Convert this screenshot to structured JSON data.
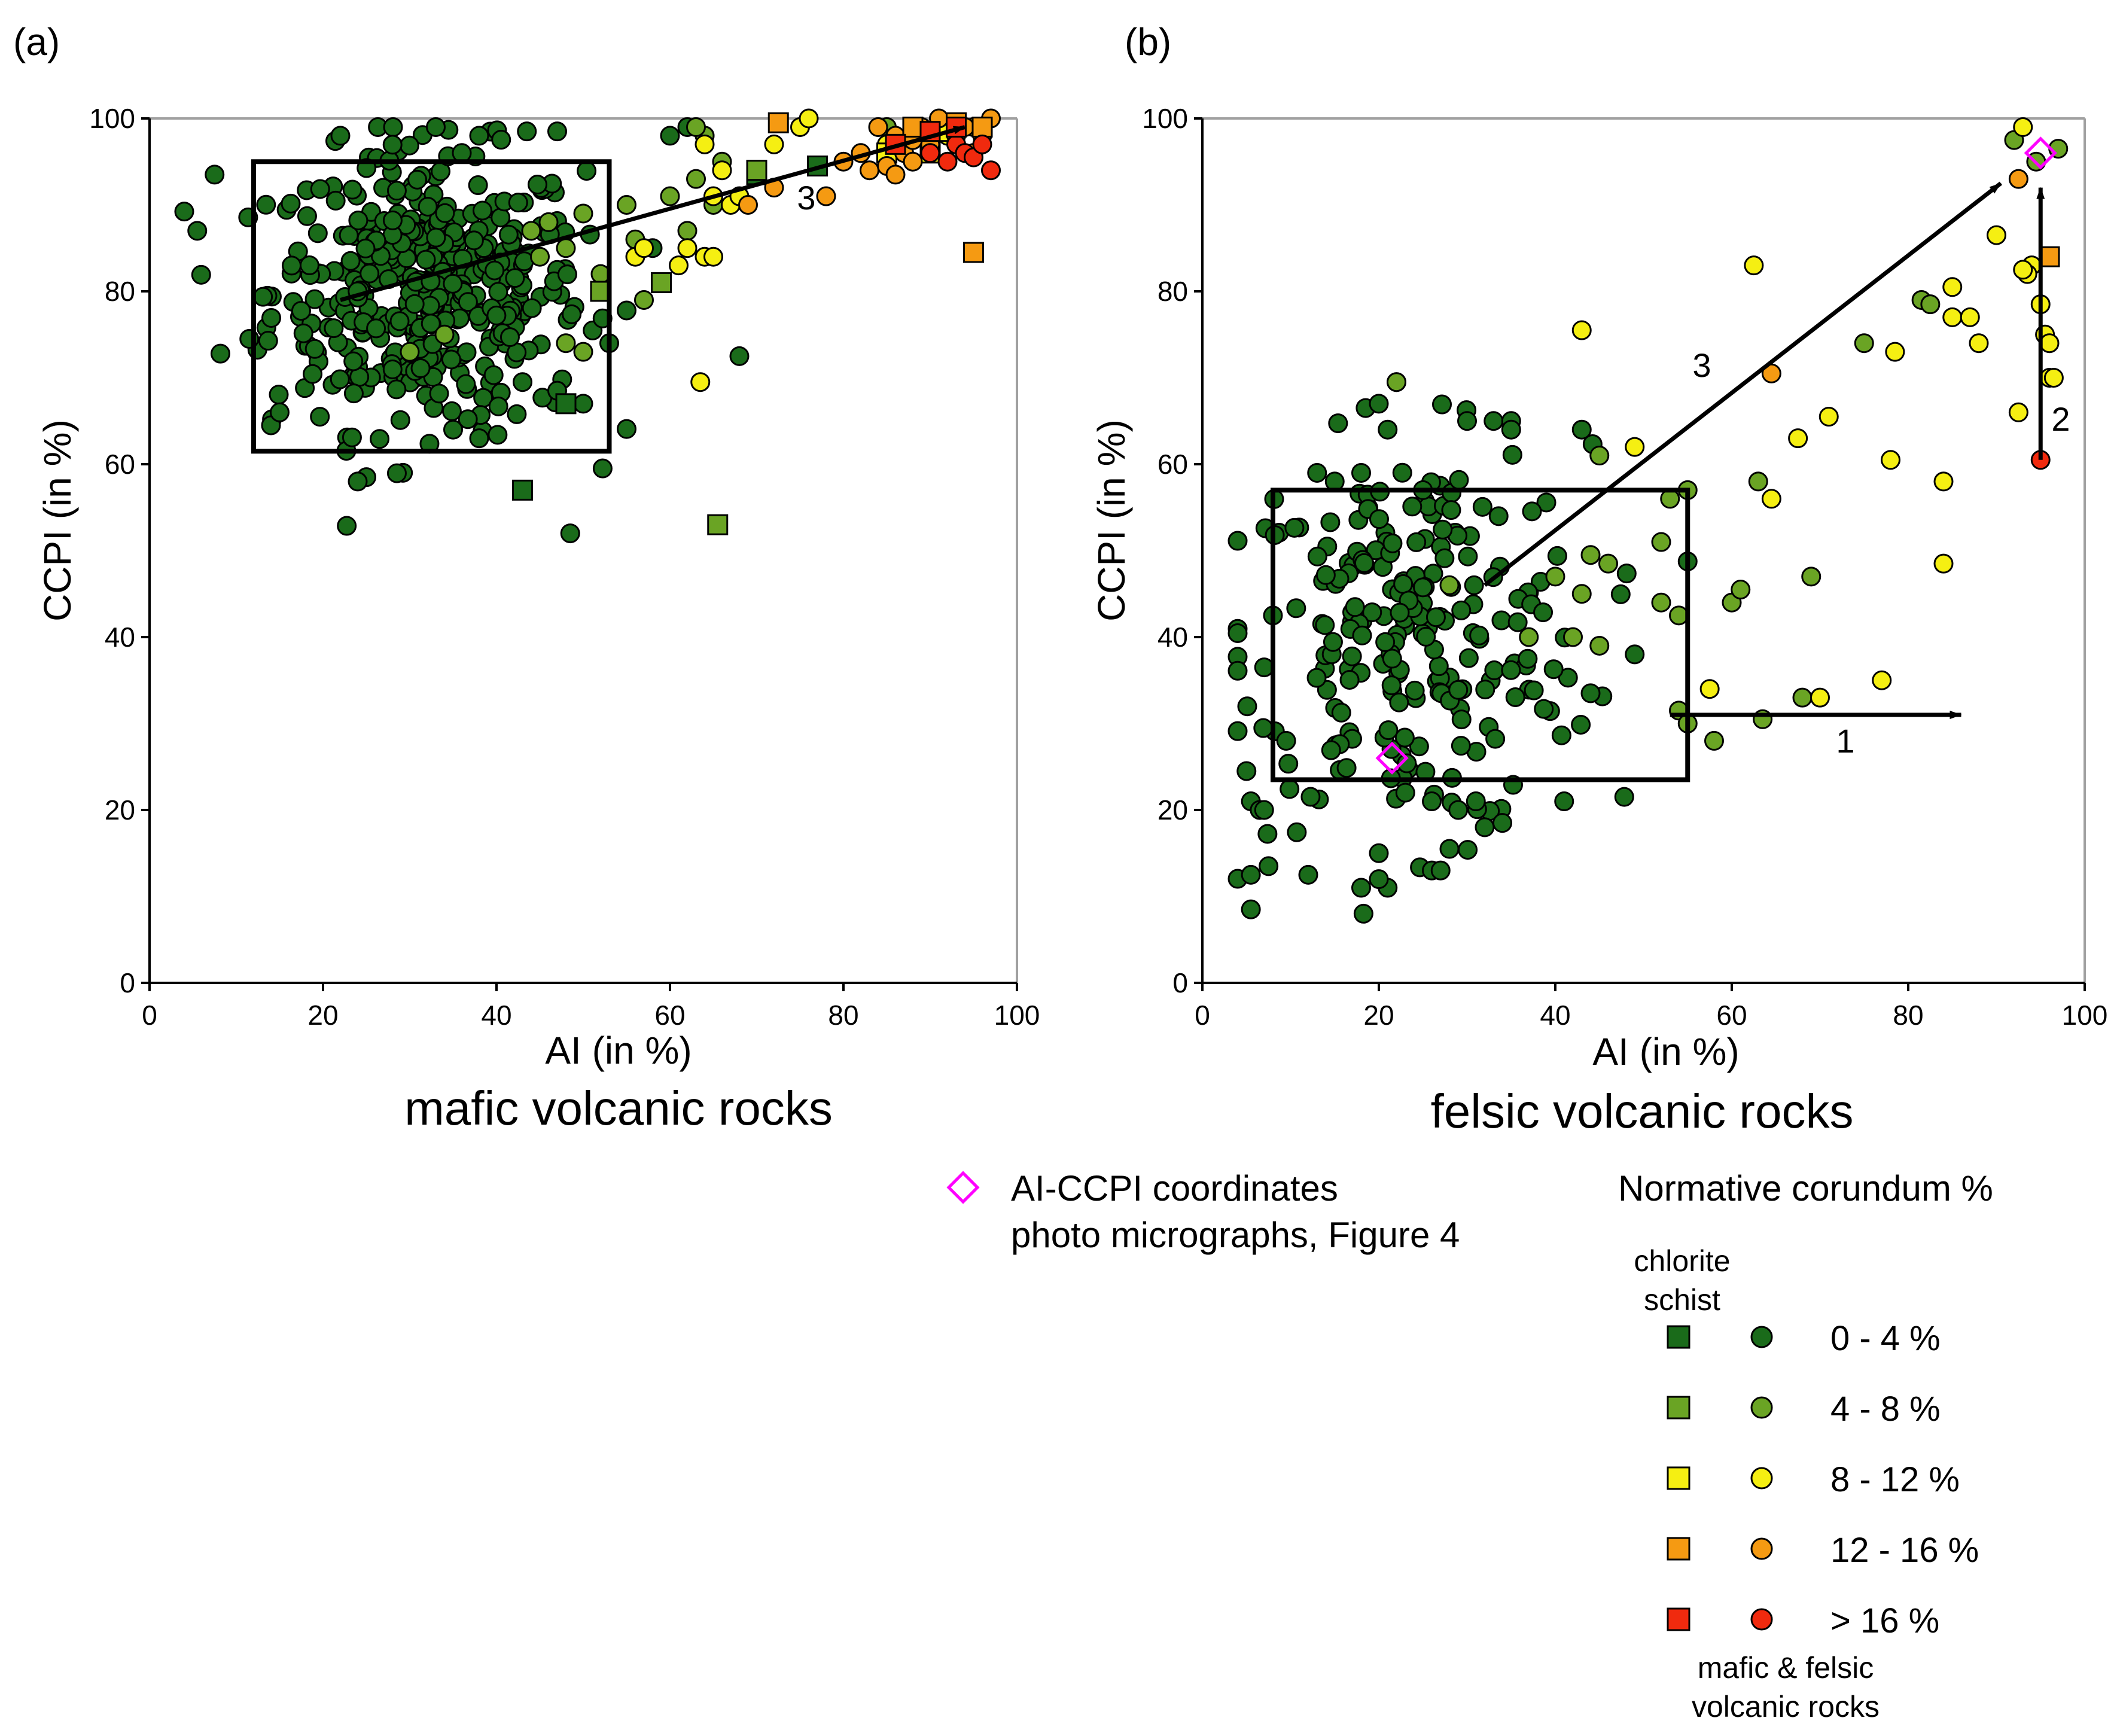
{
  "chart_data": [
    {
      "type": "scatter",
      "panel_label": "(a)",
      "title": "mafic volcanic rocks",
      "xlabel": "AI (in %)",
      "ylabel": "CCPI (in %)",
      "xlim": [
        0,
        100
      ],
      "ylim": [
        0,
        100
      ],
      "xticks": [
        "0",
        "20",
        "40",
        "60",
        "80",
        "100"
      ],
      "yticks": [
        "0",
        "20",
        "40",
        "60",
        "80",
        "100"
      ],
      "grid": false,
      "box": {
        "x": [
          12,
          53
        ],
        "y": [
          61.5,
          95
        ]
      },
      "arrows": [
        {
          "label": "3",
          "from": [
            22,
            79
          ],
          "to": [
            94,
            99
          ]
        }
      ],
      "cluster": {
        "center": [
          32,
          80
        ],
        "spread": [
          9,
          8
        ],
        "count": 420,
        "class": "0 - 4 %",
        "marker": "circle"
      },
      "series": [
        {
          "name": "0 - 4 %",
          "marker": "circle",
          "points": [
            [
              5.5,
              87
            ],
            [
              7.5,
              93.5
            ],
            [
              11.5,
              74.5
            ],
            [
              14,
              64.5
            ],
            [
              15,
              66
            ],
            [
              22,
              98
            ],
            [
              25,
              58.5
            ],
            [
              24,
              58
            ],
            [
              33,
              99
            ],
            [
              36,
              96
            ],
            [
              38,
              98
            ],
            [
              43.5,
              98.5
            ],
            [
              47,
              98.5
            ],
            [
              48.5,
              52
            ],
            [
              43,
              69.5
            ],
            [
              47,
              68.5
            ],
            [
              50,
              67
            ],
            [
              53,
              74
            ],
            [
              58,
              85
            ],
            [
              60,
              98
            ],
            [
              64,
              98
            ],
            [
              62,
              99
            ],
            [
              68,
              72.5
            ],
            [
              35,
              64
            ],
            [
              38,
              63
            ]
          ]
        },
        {
          "name": "0 - 4 %",
          "marker": "square",
          "points": [
            [
              43,
              57
            ],
            [
              48,
              67
            ],
            [
              70,
              93.5
            ],
            [
              77,
              94.5
            ]
          ]
        },
        {
          "name": "4 - 8 %",
          "marker": "circle",
          "points": [
            [
              44,
              87
            ],
            [
              46,
              88
            ],
            [
              45,
              84
            ],
            [
              48,
              85
            ],
            [
              50,
              89
            ],
            [
              52,
              82
            ],
            [
              55,
              90
            ],
            [
              56,
              86
            ],
            [
              57,
              79
            ],
            [
              60,
              91
            ],
            [
              63,
              93
            ],
            [
              62,
              87
            ],
            [
              65,
              90
            ],
            [
              66,
              95
            ],
            [
              64,
              98
            ],
            [
              63,
              99
            ],
            [
              85,
              99
            ],
            [
              48,
              74
            ],
            [
              50,
              73
            ],
            [
              30,
              73
            ],
            [
              34,
              75
            ]
          ]
        },
        {
          "name": "4 - 8 %",
          "marker": "square",
          "points": [
            [
              52,
              80
            ],
            [
              59,
              81
            ],
            [
              65.5,
              53
            ],
            [
              70,
              94
            ]
          ]
        },
        {
          "name": "8 - 12 %",
          "marker": "circle",
          "points": [
            [
              56,
              84
            ],
            [
              57,
              85
            ],
            [
              61,
              83
            ],
            [
              62,
              85
            ],
            [
              63.5,
              69.5
            ],
            [
              64,
              84
            ],
            [
              65,
              84
            ],
            [
              65,
              91
            ],
            [
              66,
              94
            ],
            [
              67,
              90
            ],
            [
              68,
              91
            ],
            [
              72,
              97
            ],
            [
              75,
              99
            ],
            [
              76,
              100
            ],
            [
              85,
              97
            ],
            [
              88,
              99
            ],
            [
              92,
              98
            ],
            [
              95,
              99
            ],
            [
              64,
              97
            ]
          ]
        },
        {
          "name": "8 - 12 %",
          "marker": "square",
          "points": [
            [
              85,
              96
            ],
            [
              90,
              96
            ],
            [
              92,
              98.5
            ]
          ]
        },
        {
          "name": "12 - 16 %",
          "marker": "circle",
          "points": [
            [
              69,
              90
            ],
            [
              72,
              92
            ],
            [
              78,
              91
            ],
            [
              80,
              95
            ],
            [
              82,
              96
            ],
            [
              83,
              94
            ],
            [
              85,
              94.5
            ],
            [
              86,
              93.5
            ],
            [
              87,
              96
            ],
            [
              88,
              95
            ],
            [
              89,
              99
            ],
            [
              90,
              97
            ],
            [
              91,
              100
            ],
            [
              93,
              98
            ],
            [
              95,
              96
            ],
            [
              96,
              99
            ],
            [
              97,
              100
            ],
            [
              96,
              98
            ],
            [
              94,
              99
            ],
            [
              86,
              98
            ],
            [
              88,
              97.5
            ],
            [
              84,
              99
            ]
          ]
        },
        {
          "name": "12 - 16 %",
          "marker": "square",
          "points": [
            [
              72.5,
              99.5
            ],
            [
              88,
              99
            ],
            [
              93,
              99.5
            ],
            [
              96,
              99
            ],
            [
              95,
              84.5
            ]
          ]
        },
        {
          "name": "> 16 %",
          "marker": "circle",
          "points": [
            [
              90,
              96
            ],
            [
              92,
              95
            ],
            [
              93,
              97
            ],
            [
              94,
              96
            ],
            [
              95,
              95.5
            ],
            [
              97,
              94
            ],
            [
              96,
              97
            ]
          ]
        },
        {
          "name": "> 16 %",
          "marker": "square",
          "points": [
            [
              86,
              97
            ],
            [
              90,
              98.5
            ],
            [
              93,
              99
            ]
          ]
        }
      ]
    },
    {
      "type": "scatter",
      "panel_label": "(b)",
      "title": "felsic volcanic rocks",
      "xlabel": "AI (in %)",
      "ylabel": "CCPI (in %)",
      "xlim": [
        0,
        100
      ],
      "ylim": [
        0,
        100
      ],
      "xticks": [
        "0",
        "20",
        "40",
        "60",
        "80",
        "100"
      ],
      "yticks": [
        "0",
        "20",
        "40",
        "60",
        "80",
        "100"
      ],
      "grid": false,
      "box": {
        "x": [
          8,
          55
        ],
        "y": [
          23.5,
          57
        ]
      },
      "arrows": [
        {
          "label": "1",
          "from": [
            53,
            31
          ],
          "to": [
            86,
            31
          ]
        },
        {
          "label": "2",
          "from": [
            95,
            60.5
          ],
          "to": [
            95,
            92
          ]
        },
        {
          "label": "3",
          "from": [
            32,
            46
          ],
          "to": [
            90.5,
            92.5
          ]
        }
      ],
      "cluster": {
        "center": [
          24,
          40
        ],
        "spread": [
          10,
          11
        ],
        "count": 230,
        "class": "0 - 4 %",
        "marker": "circle"
      },
      "series": [
        {
          "name": "0 - 4 %",
          "marker": "circle",
          "points": [
            [
              5,
              24.5
            ],
            [
              5.5,
              12.5
            ],
            [
              5.5,
              8.5
            ],
            [
              5.5,
              21
            ],
            [
              6.5,
              20
            ],
            [
              7,
              20
            ],
            [
              7.5,
              13.5
            ],
            [
              8,
              42.5
            ],
            [
              7,
              36.5
            ],
            [
              9.5,
              28
            ],
            [
              13,
              59
            ],
            [
              15,
              58
            ],
            [
              18,
              59
            ],
            [
              18.5,
              66.5
            ],
            [
              20,
              67
            ],
            [
              21,
              64
            ],
            [
              22,
              69.5
            ],
            [
              20,
              15
            ],
            [
              21,
              11
            ],
            [
              18,
              11
            ],
            [
              20,
              12
            ],
            [
              26,
              13
            ],
            [
              27,
              13
            ],
            [
              28,
              15.5
            ],
            [
              31,
              21
            ],
            [
              32,
              18
            ],
            [
              34,
              18.5
            ],
            [
              30,
              65
            ],
            [
              33,
              65
            ],
            [
              35,
              65
            ],
            [
              35,
              64
            ],
            [
              43,
              64
            ],
            [
              41,
              21
            ],
            [
              44,
              33.5
            ],
            [
              49,
              38
            ],
            [
              25,
              57
            ],
            [
              12,
              12.5
            ],
            [
              29,
              20
            ],
            [
              26,
              21
            ],
            [
              23,
              22
            ]
          ]
        },
        {
          "name": "4 - 8 %",
          "marker": "circle",
          "points": [
            [
              37,
              40
            ],
            [
              40,
              47
            ],
            [
              42,
              40
            ],
            [
              43,
              45
            ],
            [
              44,
              49.5
            ],
            [
              45,
              39
            ],
            [
              46,
              48.5
            ],
            [
              45,
              61
            ],
            [
              52,
              51
            ],
            [
              52,
              44
            ],
            [
              53,
              56
            ],
            [
              54,
              42.5
            ],
            [
              55,
              57
            ],
            [
              54,
              31.5
            ],
            [
              55,
              30
            ],
            [
              58,
              28
            ],
            [
              60,
              44
            ],
            [
              61,
              45.5
            ],
            [
              63,
              58
            ],
            [
              63.5,
              30.5
            ],
            [
              68,
              33
            ],
            [
              69,
              47
            ],
            [
              75,
              74
            ],
            [
              81.5,
              79
            ],
            [
              82.5,
              78.5
            ],
            [
              92,
              97.5
            ],
            [
              94.5,
              95
            ],
            [
              97,
              96.5
            ],
            [
              22,
              69.5
            ],
            [
              28,
              46
            ]
          ]
        },
        {
          "name": "8 - 12 %",
          "marker": "circle",
          "points": [
            [
              43,
              75.5
            ],
            [
              49,
              62
            ],
            [
              57.5,
              34
            ],
            [
              62.5,
              83
            ],
            [
              64.5,
              56
            ],
            [
              67.5,
              63
            ],
            [
              70,
              33
            ],
            [
              71,
              65.5
            ],
            [
              77,
              35
            ],
            [
              78,
              60.5
            ],
            [
              78.5,
              73
            ],
            [
              84,
              58
            ],
            [
              84,
              48.5
            ],
            [
              85,
              77
            ],
            [
              85,
              80.5
            ],
            [
              87,
              77
            ],
            [
              88,
              74
            ],
            [
              90,
              86.5
            ],
            [
              93,
              99
            ],
            [
              92.5,
              66
            ],
            [
              94,
              83
            ],
            [
              95,
              78.5
            ],
            [
              95.5,
              75
            ],
            [
              96,
              74
            ],
            [
              96,
              70
            ],
            [
              93.5,
              82
            ],
            [
              96.5,
              70
            ],
            [
              93,
              82.5
            ]
          ]
        },
        {
          "name": "12 - 16 %",
          "marker": "circle",
          "points": [
            [
              64.5,
              70.5
            ],
            [
              92.5,
              93
            ]
          ]
        },
        {
          "name": "12 - 16 %",
          "marker": "square",
          "points": [
            [
              96,
              84
            ]
          ]
        },
        {
          "name": "> 16 %",
          "marker": "circle",
          "points": [
            [
              95,
              60.5
            ]
          ]
        },
        {
          "name": "AI-CCPI coordinates",
          "marker": "diamond",
          "points": [
            [
              21.5,
              26
            ],
            [
              95,
              96
            ]
          ]
        }
      ]
    }
  ],
  "legend": {
    "diamond_line1": "AI-CCPI coordinates",
    "diamond_line2": "photo micrographs, Figure 4",
    "title": "Normative corundum %",
    "col1_line1": "chlorite",
    "col1_line2": "schist",
    "classes": [
      {
        "label": "0 - 4 %",
        "color": "#1a6b1a"
      },
      {
        "label": "4 - 8 %",
        "color": "#6aa424"
      },
      {
        "label": "8 - 12 %",
        "color": "#f5ef12"
      },
      {
        "label": "12 - 16 %",
        "color": "#f59a12"
      },
      {
        "label": "> 16 %",
        "color": "#f02a0e"
      }
    ],
    "foot_line1": "mafic & felsic",
    "foot_line2": "volcanic rocks"
  },
  "colors": {
    "0 - 4 %": "#1a6b1a",
    "4 - 8 %": "#6aa424",
    "8 - 12 %": "#f5ef12",
    "12 - 16 %": "#f59a12",
    "> 16 %": "#f02a0e",
    "AI-CCPI coordinates": "#ff00ff",
    "axis": "#000000",
    "frame": "#a0a0a0"
  }
}
